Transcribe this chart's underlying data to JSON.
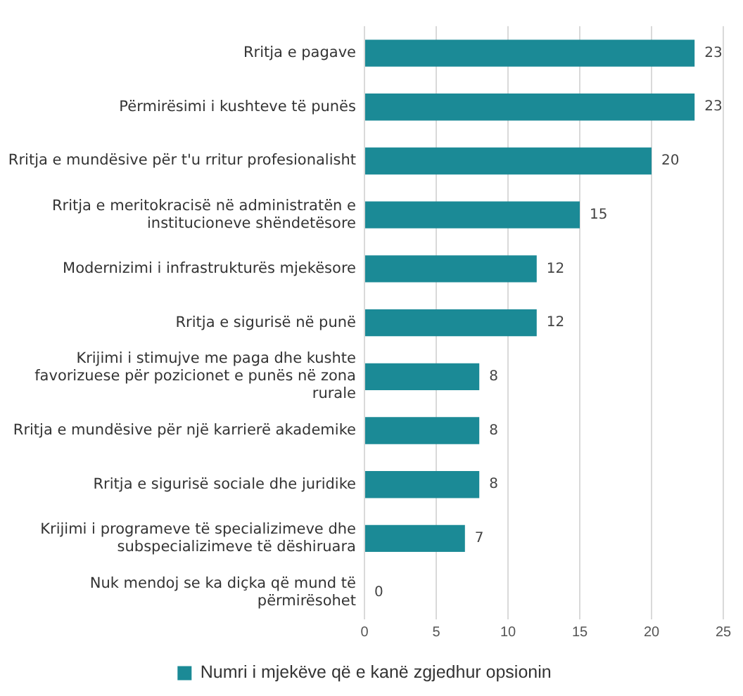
{
  "chart_data": {
    "type": "bar",
    "orientation": "horizontal",
    "categories": [
      "Rritja e pagave",
      "Përmirësimi i kushteve të punës",
      "Rritja e mundësive për t'u rritur profesionalisht",
      "Rritja e meritokracisë në administratën e institucioneve shëndetësore",
      "Modernizimi i infrastrukturës mjekësore",
      "Rritja e sigurisë në punë",
      "Krijimi i stimujve me paga dhe kushte favorizuese për pozicionet e punës në zona rurale",
      "Rritja e mundësive për një karrierë akademike",
      "Rritja e sigurisë sociale dhe juridike",
      "Krijimi i programeve të specializimeve dhe subspecializimeve të dëshiruara",
      "Nuk mendoj se ka diçka që mund të përmirësohet"
    ],
    "series": [
      {
        "name": "Numri i mjekëve që e kanë zgjedhur opsionin",
        "color": "#1b8a96",
        "values": [
          23,
          23,
          20,
          15,
          12,
          12,
          8,
          8,
          8,
          7,
          0
        ]
      }
    ],
    "xlim": [
      0,
      25
    ],
    "xticks": [
      0,
      5,
      10,
      15,
      20,
      25
    ],
    "grid": "x",
    "legend": "bottom",
    "data_labels": true
  }
}
